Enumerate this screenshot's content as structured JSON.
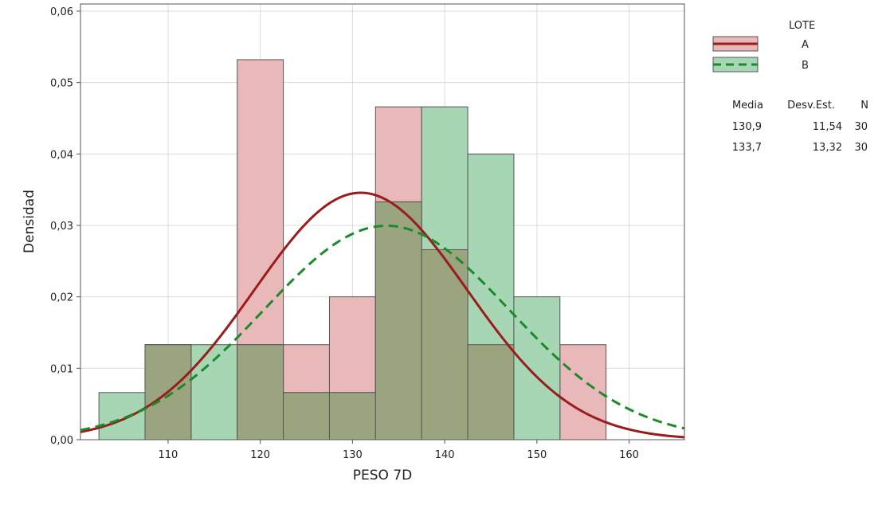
{
  "chart_data": {
    "type": "histogram",
    "xlabel": "PESO 7D",
    "ylabel": "Densidad",
    "xlim": [
      100.5,
      166
    ],
    "ylim": [
      0,
      0.061
    ],
    "xticks": [
      110,
      120,
      130,
      140,
      150,
      160
    ],
    "xtick_labels": [
      "110",
      "120",
      "130",
      "140",
      "150",
      "160"
    ],
    "yticks": [
      0,
      0.01,
      0.02,
      0.03,
      0.04,
      0.05,
      0.06
    ],
    "ytick_labels": [
      "0,00",
      "0,01",
      "0,02",
      "0,03",
      "0,04",
      "0,05",
      "0,06"
    ],
    "grid": true,
    "bin_width": 5,
    "legend_position": "right",
    "legend_title": "LOTE",
    "stats_headers": [
      "Media",
      "Desv.Est.",
      "N"
    ],
    "overlap_color": "#9aa57f",
    "series": [
      {
        "name": "A",
        "bar_color": "#e9b8b8",
        "curve_color": "#9b1c1c",
        "curve_style": "solid",
        "bins": [
          {
            "start": 107.5,
            "end": 112.5,
            "density": 0.0133
          },
          {
            "start": 117.5,
            "end": 122.5,
            "density": 0.0532
          },
          {
            "start": 122.5,
            "end": 127.5,
            "density": 0.0133
          },
          {
            "start": 127.5,
            "end": 132.5,
            "density": 0.02
          },
          {
            "start": 132.5,
            "end": 137.5,
            "density": 0.0466
          },
          {
            "start": 137.5,
            "end": 142.5,
            "density": 0.0266
          },
          {
            "start": 142.5,
            "end": 147.5,
            "density": 0.0133
          },
          {
            "start": 152.5,
            "end": 157.5,
            "density": 0.0133
          }
        ],
        "mean": 130.9,
        "std": 11.54,
        "n": 30,
        "mean_label": "130,9",
        "std_label": "11,54",
        "n_label": "30"
      },
      {
        "name": "B",
        "bar_color": "#a7d6b4",
        "curve_color": "#1a8a2a",
        "curve_style": "dashed",
        "bins": [
          {
            "start": 102.5,
            "end": 107.5,
            "density": 0.0066
          },
          {
            "start": 107.5,
            "end": 112.5,
            "density": 0.0133
          },
          {
            "start": 112.5,
            "end": 117.5,
            "density": 0.0133
          },
          {
            "start": 117.5,
            "end": 122.5,
            "density": 0.0133
          },
          {
            "start": 122.5,
            "end": 127.5,
            "density": 0.0066
          },
          {
            "start": 127.5,
            "end": 132.5,
            "density": 0.0066
          },
          {
            "start": 132.5,
            "end": 137.5,
            "density": 0.0333
          },
          {
            "start": 137.5,
            "end": 142.5,
            "density": 0.0466
          },
          {
            "start": 142.5,
            "end": 147.5,
            "density": 0.04
          },
          {
            "start": 147.5,
            "end": 152.5,
            "density": 0.02
          }
        ],
        "mean": 133.7,
        "std": 13.32,
        "n": 30,
        "mean_label": "133,7",
        "std_label": "13,32",
        "n_label": "30"
      }
    ]
  }
}
